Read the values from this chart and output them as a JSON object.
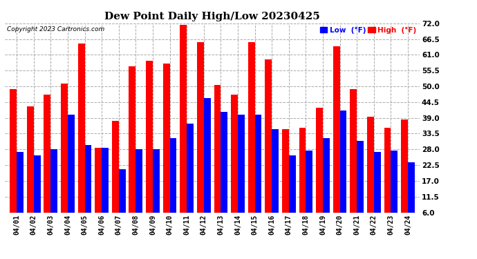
{
  "title": "Dew Point Daily High/Low 20230425",
  "copyright": "Copyright 2023 Cartronics.com",
  "dates": [
    "04/01",
    "04/02",
    "04/03",
    "04/04",
    "04/05",
    "04/06",
    "04/07",
    "04/08",
    "04/09",
    "04/10",
    "04/11",
    "04/12",
    "04/13",
    "04/14",
    "04/15",
    "04/16",
    "04/17",
    "04/18",
    "04/19",
    "04/20",
    "04/21",
    "04/22",
    "04/23",
    "04/24"
  ],
  "high": [
    49.0,
    43.0,
    47.0,
    51.0,
    65.0,
    28.5,
    38.0,
    57.0,
    59.0,
    58.0,
    71.5,
    65.5,
    50.5,
    47.0,
    65.5,
    59.5,
    35.0,
    35.5,
    42.5,
    64.0,
    49.0,
    39.5,
    35.5,
    38.5
  ],
  "low": [
    27.0,
    26.0,
    28.0,
    40.0,
    29.5,
    28.5,
    21.0,
    28.0,
    28.0,
    32.0,
    37.0,
    46.0,
    41.0,
    40.0,
    40.0,
    35.0,
    26.0,
    27.5,
    32.0,
    41.5,
    31.0,
    27.0,
    27.5,
    23.5
  ],
  "high_color": "#ff0000",
  "low_color": "#0000ff",
  "bg_color": "#ffffff",
  "ylim": [
    6.0,
    72.0
  ],
  "yticks": [
    6.0,
    11.5,
    17.0,
    22.5,
    28.0,
    33.5,
    39.0,
    44.5,
    50.0,
    55.5,
    61.0,
    66.5,
    72.0
  ],
  "legend_low_label": "Low  (°F)",
  "legend_high_label": "High  (°F)",
  "bar_width": 0.4,
  "figsize": [
    6.9,
    3.75
  ],
  "dpi": 100
}
